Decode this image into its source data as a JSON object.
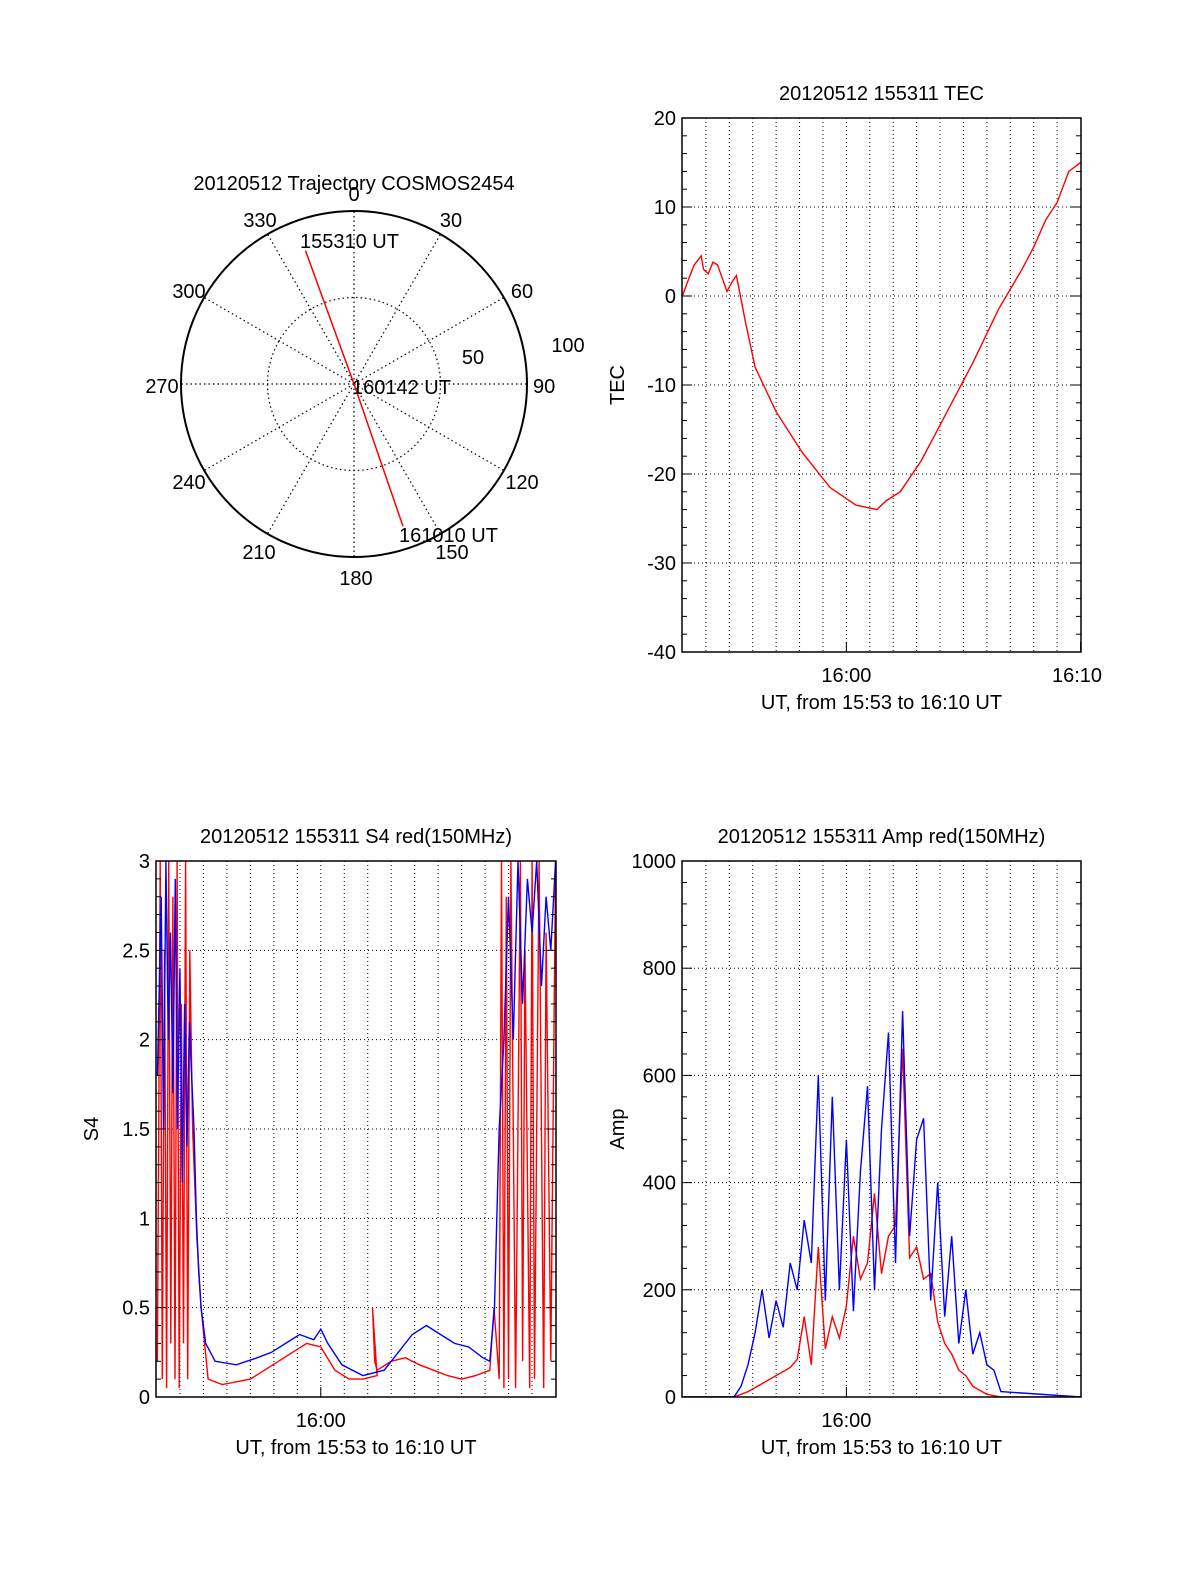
{
  "colors": {
    "red": "#ff0000",
    "blue": "#0000ff",
    "axis": "#000000",
    "grid": "#000000"
  },
  "polar": {
    "title": "20120512 Trajectory COSMOS2454",
    "azimuth_labels": [
      "0",
      "30",
      "60",
      "90",
      "120",
      "150",
      "180",
      "210",
      "240",
      "270",
      "300",
      "330"
    ],
    "radius_labels": [
      "50",
      "100"
    ],
    "point_labels": [
      "155310 UT",
      "160142 UT",
      "161010 UT"
    ]
  },
  "chart_data": [
    {
      "type": "polar",
      "title": "20120512 Trajectory COSMOS2454",
      "rlim": [
        0,
        100
      ],
      "azimuth_ticks": [
        0,
        30,
        60,
        90,
        120,
        150,
        180,
        210,
        240,
        270,
        300,
        330
      ],
      "radius_ticks": [
        50,
        100
      ],
      "series": [
        {
          "points": [
            {
              "az": 340,
              "r": 82,
              "label": "155310 UT"
            },
            {
              "az": 0,
              "r": 0,
              "label": "160142 UT"
            },
            {
              "az": 161,
              "r": 87,
              "label": "161010 UT"
            }
          ]
        }
      ]
    },
    {
      "type": "line",
      "title": "20120512 155311 TEC",
      "xlabel": "UT, from 15:53 to 16:10 UT",
      "ylabel": "TEC",
      "xlim": [
        15.883,
        16.167
      ],
      "ylim": [
        -40,
        20
      ],
      "yticks": [
        -40,
        -30,
        -20,
        -10,
        0,
        10,
        20
      ],
      "xtick_labels": [
        {
          "t": 16.0,
          "label": "16:00"
        },
        {
          "t": 16.1667,
          "label": "16:10"
        }
      ],
      "grid": true,
      "series": [
        {
          "color": "#ff0000",
          "x": [
            15.8833,
            15.8867,
            15.8917,
            15.8967,
            15.8983,
            15.9017,
            15.905,
            15.9083,
            15.9117,
            15.915,
            15.9183,
            15.9217,
            15.9283,
            15.935,
            15.95,
            15.9683,
            15.9883,
            16.0067,
            16.0217,
            16.0283,
            16.0383,
            16.0533,
            16.0717,
            16.09,
            16.1083,
            16.125,
            16.1333,
            16.1417,
            16.15,
            16.1583,
            16.1667
          ],
          "y": [
            0,
            1.5,
            3.5,
            4.5,
            3,
            2.5,
            3.8,
            3.5,
            2,
            0.5,
            1.5,
            2.3,
            -3,
            -8,
            -13,
            -17.5,
            -21.5,
            -23.5,
            -24,
            -23,
            -22,
            -18.5,
            -13,
            -7.5,
            -1.5,
            3,
            5.5,
            8.5,
            10.5,
            14,
            15
          ]
        }
      ]
    },
    {
      "type": "line",
      "title": "20120512 155311 S4 red(150MHz)",
      "xlabel": "UT, from 15:53 to 16:10 UT",
      "ylabel": "S4",
      "xlim": [
        15.883,
        16.167
      ],
      "ylim": [
        0,
        3
      ],
      "yticks": [
        0,
        0.5,
        1,
        1.5,
        2,
        2.5,
        3
      ],
      "xtick_labels": [
        {
          "t": 16.0,
          "label": "16:00"
        }
      ],
      "grid": true,
      "series": [
        {
          "color": "#ff0000",
          "x": [
            15.884,
            15.886,
            15.8875,
            15.889,
            15.8905,
            15.892,
            15.8935,
            15.895,
            15.8965,
            15.898,
            15.8995,
            15.901,
            15.9025,
            15.904,
            15.9055,
            15.907,
            15.909,
            15.912,
            15.915,
            15.92,
            15.93,
            15.95,
            15.97,
            15.98,
            15.99,
            16.0,
            16.01,
            16.02,
            16.03,
            16.04,
            16.0367,
            16.0383,
            16.04,
            16.05,
            16.06,
            16.07,
            16.08,
            16.09,
            16.1,
            16.11,
            16.12,
            16.123,
            16.1267,
            16.1283,
            16.13,
            16.1317,
            16.1333,
            16.135,
            16.1383,
            16.1417,
            16.1433,
            16.145,
            16.1483,
            16.15,
            16.1517,
            16.155,
            16.1583,
            16.16,
            16.1633,
            16.1667
          ],
          "y": [
            0.2,
            3,
            0.1,
            2.5,
            0.05,
            3,
            0.3,
            2.8,
            0.1,
            3,
            0.05,
            2.2,
            0.3,
            3,
            0.1,
            2.5,
            1.5,
            0.9,
            0.5,
            0.1,
            0.07,
            0.1,
            0.2,
            0.25,
            0.3,
            0.28,
            0.15,
            0.1,
            0.1,
            0.12,
            0.5,
            0.2,
            0.15,
            0.2,
            0.22,
            0.18,
            0.15,
            0.12,
            0.1,
            0.12,
            0.15,
            0.5,
            0.1,
            3,
            0.05,
            2.8,
            0.1,
            3,
            0.05,
            3,
            0.2,
            2.5,
            0.05,
            3,
            0.1,
            3,
            0.05,
            2.6,
            0.2,
            3
          ]
        },
        {
          "color": "#0000ff",
          "x": [
            15.884,
            15.8867,
            15.8883,
            15.89,
            15.8917,
            15.8933,
            15.895,
            15.8967,
            15.8983,
            15.9,
            15.9017,
            15.9033,
            15.905,
            15.9067,
            15.9083,
            15.91,
            15.9117,
            15.9133,
            15.915,
            15.9183,
            15.925,
            15.94,
            15.955,
            15.965,
            15.975,
            15.985,
            15.995,
            16.0,
            16.005,
            16.015,
            16.03,
            16.045,
            16.055,
            16.065,
            16.075,
            16.085,
            16.095,
            16.105,
            16.115,
            16.12,
            16.1233,
            16.125,
            16.1267,
            16.13,
            16.1333,
            16.1367,
            16.14,
            16.1433,
            16.1467,
            16.15,
            16.1533,
            16.1567,
            16.16,
            16.1633,
            16.1667
          ],
          "y": [
            1.8,
            2.8,
            1.5,
            3,
            2,
            2.6,
            1.7,
            2.9,
            1.5,
            2.4,
            1.2,
            2.2,
            1.4,
            2.1,
            1.8,
            1.5,
            1.0,
            0.7,
            0.5,
            0.3,
            0.2,
            0.18,
            0.22,
            0.25,
            0.3,
            0.35,
            0.32,
            0.38,
            0.3,
            0.18,
            0.12,
            0.15,
            0.25,
            0.35,
            0.4,
            0.35,
            0.3,
            0.28,
            0.22,
            0.2,
            0.5,
            1.0,
            1.5,
            2.0,
            2.8,
            2.0,
            3.0,
            2.2,
            2.9,
            2.6,
            3.0,
            2.3,
            2.8,
            2.5,
            3.0
          ]
        }
      ]
    },
    {
      "type": "line",
      "title": "20120512 155311 Amp red(150MHz)",
      "xlabel": "UT, from 15:53 to 16:10 UT",
      "ylabel": "Amp",
      "xlim": [
        15.883,
        16.167
      ],
      "ylim": [
        0,
        1000
      ],
      "yticks": [
        0,
        200,
        400,
        600,
        800,
        1000
      ],
      "xtick_labels": [
        {
          "t": 16.0,
          "label": "16:00"
        }
      ],
      "grid": true,
      "series": [
        {
          "color": "#ff0000",
          "x": [
            15.8833,
            15.92,
            15.93,
            15.94,
            15.95,
            15.96,
            15.965,
            15.97,
            15.975,
            15.98,
            15.985,
            15.99,
            15.995,
            16.0,
            16.005,
            16.01,
            16.015,
            16.02,
            16.025,
            16.03,
            16.035,
            16.04,
            16.045,
            16.05,
            16.055,
            16.06,
            16.065,
            16.07,
            16.075,
            16.08,
            16.085,
            16.09,
            16.1,
            16.11,
            16.167
          ],
          "y": [
            0,
            0,
            10,
            25,
            40,
            55,
            70,
            150,
            60,
            280,
            90,
            150,
            110,
            170,
            300,
            220,
            250,
            380,
            230,
            300,
            320,
            650,
            260,
            280,
            220,
            230,
            140,
            100,
            80,
            50,
            40,
            20,
            5,
            0,
            0
          ]
        },
        {
          "color": "#0000ff",
          "x": [
            15.8833,
            15.92,
            15.925,
            15.93,
            15.935,
            15.94,
            15.945,
            15.95,
            15.955,
            15.96,
            15.965,
            15.97,
            15.975,
            15.98,
            15.985,
            15.99,
            15.995,
            16.0,
            16.005,
            16.01,
            16.015,
            16.02,
            16.025,
            16.03,
            16.035,
            16.04,
            16.045,
            16.05,
            16.055,
            16.06,
            16.065,
            16.07,
            16.075,
            16.08,
            16.085,
            16.09,
            16.095,
            16.1,
            16.105,
            16.11,
            16.167
          ],
          "y": [
            0,
            0,
            20,
            60,
            120,
            200,
            110,
            180,
            130,
            250,
            200,
            330,
            250,
            600,
            180,
            560,
            200,
            480,
            160,
            420,
            580,
            200,
            500,
            680,
            250,
            720,
            300,
            480,
            520,
            180,
            400,
            150,
            300,
            100,
            200,
            80,
            120,
            60,
            50,
            10,
            0
          ]
        }
      ]
    }
  ]
}
